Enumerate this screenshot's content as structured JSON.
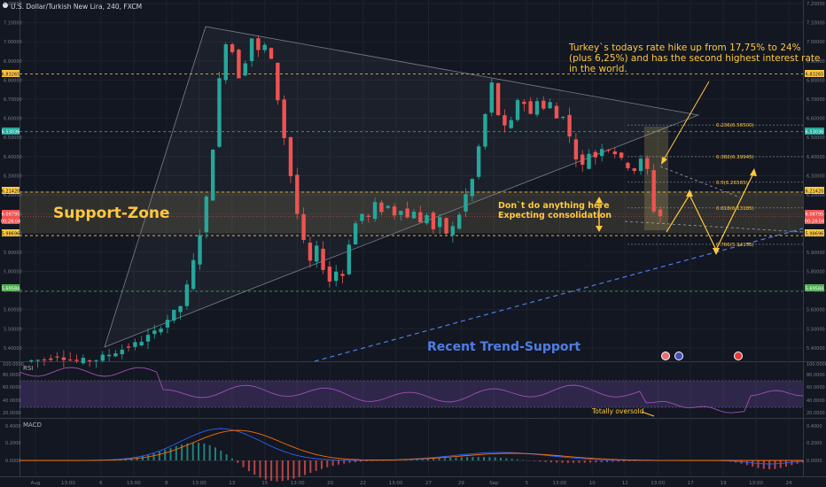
{
  "header": {
    "symbol": "U.S. Dollar/Turkish New Lira, 240, FXCM"
  },
  "axis": {
    "price_ticks": [
      "7.20000",
      "7.10000",
      "7.00000",
      "6.90000",
      "6.80000",
      "6.70000",
      "6.60000",
      "6.50000",
      "6.40000",
      "6.30000",
      "6.20000",
      "6.10000",
      "6.00000",
      "5.90000",
      "5.80000",
      "5.70000",
      "5.60000",
      "5.50000",
      "5.40000"
    ],
    "time_ticks": [
      "Aug",
      "13:00",
      "6",
      "13:00",
      "8",
      "13:00",
      "13",
      "15",
      "13:00",
      "20",
      "22",
      "13:00",
      "27",
      "29",
      "Sep",
      "5",
      "13:00",
      "10",
      "12",
      "13:00",
      "17",
      "19",
      "13:00",
      "24"
    ],
    "rsi_ticks": [
      "100.0000",
      "80.0000",
      "60.0000",
      "40.0000",
      "20.0000"
    ],
    "macd_ticks": [
      "0.4000",
      "0.2000",
      "0.0000"
    ]
  },
  "badges": {
    "b1": "6.83265",
    "b2": "6.53036",
    "b3": "6.21420",
    "b4": "6.08795",
    "b5": "00:24:04",
    "b6": "5.98696",
    "b7": "5.69584"
  },
  "colors": {
    "bull": "#26a69a",
    "bear": "#ef5350",
    "annotation": "#ffc840",
    "zone": "#d9c36e",
    "trend": "#4d7de6",
    "rsi": "#a14fb5"
  },
  "annotations": {
    "support_zone": "Support-Zone",
    "recent_trend": "Recent Trend-Support",
    "turkey_line1": "Turkey`s todays rate hike up from 17,75% to 24%",
    "turkey_line2": "(plus 6,25%) and has the second highest interest rate",
    "turkey_line3": "in the world.",
    "dont_line1": "Don`t do anything here",
    "dont_line2": "Expecting consolidation",
    "oversold": "Totally oversold"
  },
  "fib": [
    "0.236(6.56500)",
    "0.382(6.39945)",
    "0.5(6.26565)",
    "0.618(6.13185)",
    "0.786(5.94136)"
  ],
  "indicators": {
    "rsi_label": "RSI",
    "macd_label": "MACD"
  },
  "chart_data": {
    "type": "candlestick",
    "title": "U.S. Dollar/Turkish New Lira, 240, FXCM",
    "ylim": [
      5.33,
      7.2
    ],
    "levels": [
      6.83265,
      6.53036,
      6.2142,
      5.98696,
      5.69584
    ],
    "last_price": 6.08795,
    "support_zone": [
      5.98696,
      6.2142
    ],
    "series": [
      {
        "name": "USDTRY",
        "close_path": [
          [
            0,
            5.33
          ],
          [
            3,
            5.34
          ],
          [
            5,
            5.36
          ],
          [
            6,
            5.35
          ],
          [
            8,
            5.33
          ],
          [
            11,
            5.34
          ],
          [
            14,
            5.38
          ],
          [
            17,
            5.42
          ],
          [
            20,
            5.48
          ],
          [
            22,
            5.55
          ],
          [
            24,
            5.62
          ],
          [
            25,
            5.72
          ],
          [
            26,
            5.85
          ],
          [
            27,
            6.0
          ],
          [
            28,
            6.18
          ],
          [
            29,
            6.45
          ],
          [
            30,
            6.8
          ],
          [
            31,
            7.0
          ],
          [
            32,
            6.95
          ],
          [
            33,
            6.82
          ],
          [
            34,
            6.9
          ],
          [
            35,
            7.02
          ],
          [
            36,
            6.95
          ],
          [
            37,
            6.98
          ],
          [
            38,
            6.9
          ],
          [
            39,
            6.7
          ],
          [
            40,
            6.5
          ],
          [
            41,
            6.3
          ],
          [
            42,
            6.1
          ],
          [
            43,
            5.95
          ],
          [
            44,
            5.85
          ],
          [
            45,
            5.92
          ],
          [
            46,
            5.82
          ],
          [
            47,
            5.75
          ],
          [
            48,
            5.8
          ],
          [
            49,
            5.78
          ],
          [
            50,
            5.95
          ],
          [
            51,
            6.05
          ],
          [
            52,
            6.1
          ],
          [
            53,
            6.08
          ],
          [
            54,
            6.15
          ],
          [
            55,
            6.12
          ],
          [
            56,
            6.14
          ],
          [
            57,
            6.1
          ],
          [
            58,
            6.13
          ],
          [
            59,
            6.08
          ],
          [
            60,
            6.12
          ],
          [
            61,
            6.05
          ],
          [
            62,
            6.1
          ],
          [
            63,
            6.02
          ],
          [
            64,
            6.07
          ],
          [
            65,
            6.0
          ],
          [
            66,
            6.03
          ],
          [
            67,
            6.1
          ],
          [
            68,
            6.2
          ],
          [
            69,
            6.28
          ],
          [
            70,
            6.45
          ],
          [
            71,
            6.62
          ],
          [
            72,
            6.78
          ],
          [
            73,
            6.62
          ],
          [
            74,
            6.55
          ],
          [
            75,
            6.58
          ],
          [
            76,
            6.7
          ],
          [
            77,
            6.68
          ],
          [
            78,
            6.62
          ],
          [
            79,
            6.7
          ],
          [
            80,
            6.65
          ],
          [
            81,
            6.68
          ],
          [
            82,
            6.6
          ],
          [
            83,
            6.62
          ],
          [
            84,
            6.5
          ],
          [
            85,
            6.4
          ],
          [
            86,
            6.35
          ],
          [
            87,
            6.42
          ],
          [
            88,
            6.4
          ],
          [
            89,
            6.45
          ],
          [
            90,
            6.44
          ],
          [
            91,
            6.42
          ],
          [
            92,
            6.38
          ],
          [
            93,
            6.35
          ],
          [
            94,
            6.33
          ],
          [
            95,
            6.38
          ],
          [
            96,
            6.33
          ],
          [
            97,
            6.12
          ],
          [
            98,
            6.09
          ]
        ]
      }
    ]
  }
}
